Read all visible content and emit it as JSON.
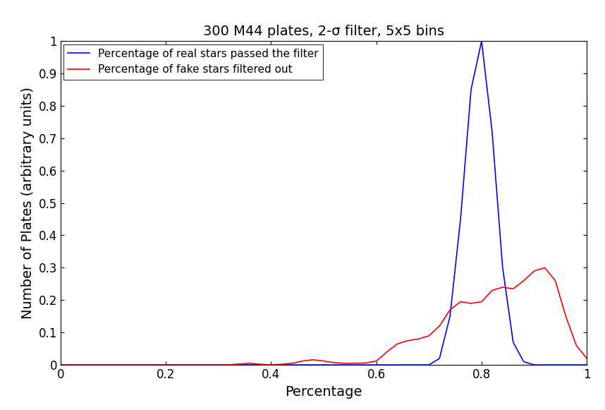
{
  "chart_data": {
    "type": "line",
    "title": "300 M44 plates, 2-σ filter, 5x5 bins",
    "x_label": "Percentage",
    "y_label": "Number of Plates (arbitrary units)",
    "x": [
      0,
      0.02,
      0.04,
      0.06,
      0.08,
      0.1,
      0.12,
      0.14,
      0.16,
      0.18,
      0.2,
      0.22,
      0.24,
      0.26,
      0.28,
      0.3,
      0.32,
      0.34,
      0.36,
      0.38,
      0.4,
      0.42,
      0.44,
      0.46,
      0.48,
      0.5,
      0.52,
      0.54,
      0.56,
      0.58,
      0.6,
      0.62,
      0.64,
      0.66,
      0.68,
      0.7,
      0.72,
      0.74,
      0.76,
      0.78,
      0.8,
      0.82,
      0.84,
      0.86,
      0.88,
      0.9,
      0.92,
      0.94,
      0.96,
      0.98,
      1
    ],
    "series": [
      {
        "name": "Percentage of real stars passed the filter",
        "color": "#0000ff",
        "values": [
          0,
          0,
          0,
          0,
          0,
          0,
          0,
          0,
          0,
          0,
          0,
          0,
          0,
          0,
          0,
          0,
          0,
          0,
          0,
          0,
          0,
          0,
          0,
          0,
          0,
          0,
          0,
          0,
          0,
          0,
          0,
          0,
          0,
          0,
          0,
          0,
          0.02,
          0.15,
          0.45,
          0.85,
          1.0,
          0.72,
          0.3,
          0.07,
          0.01,
          0,
          0,
          0,
          0,
          0,
          0
        ]
      },
      {
        "name": "Percentage of fake stars filtered out",
        "color": "#ff0000",
        "values": [
          0,
          0,
          0,
          0,
          0,
          0,
          0,
          0,
          0,
          0,
          0,
          0,
          0,
          0,
          0,
          0,
          0,
          0.003,
          0.005,
          0.002,
          0,
          0.002,
          0.005,
          0.012,
          0.016,
          0.012,
          0.007,
          0.005,
          0.005,
          0.006,
          0.012,
          0.04,
          0.065,
          0.075,
          0.08,
          0.09,
          0.12,
          0.17,
          0.195,
          0.19,
          0.195,
          0.23,
          0.24,
          0.235,
          0.26,
          0.29,
          0.3,
          0.26,
          0.15,
          0.06,
          0.02
        ]
      }
    ],
    "xlim": [
      0,
      1
    ],
    "xticks": [
      0,
      0.2,
      0.4,
      0.6,
      0.8,
      1
    ],
    "ylim": [
      0,
      1
    ],
    "yticks": [
      0,
      0.1,
      0.2,
      0.3,
      0.4,
      0.5,
      0.6,
      0.7,
      0.8,
      0.9,
      1
    ],
    "grid": false,
    "legend": "upper left"
  }
}
